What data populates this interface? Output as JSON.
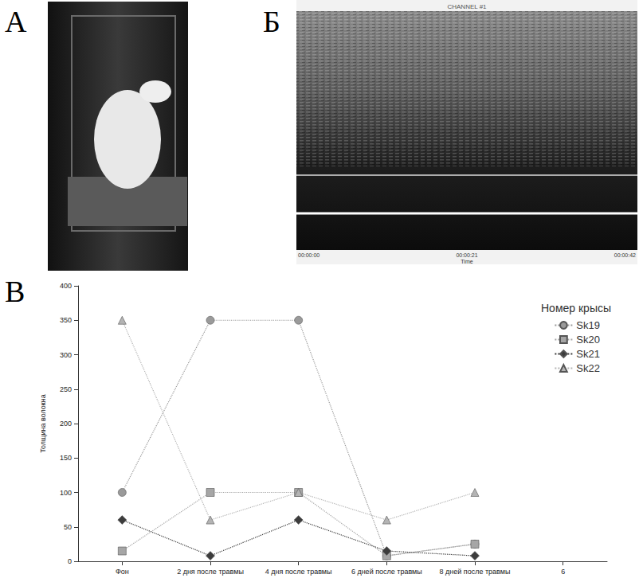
{
  "panel_labels": [
    "А",
    "Б",
    "В"
  ],
  "spectrogram": {
    "title": "CHANNEL #1",
    "x_labels": [
      "00:00:00",
      "00:00:21",
      "00:00:42"
    ],
    "x_title": "Time"
  },
  "chart_data": {
    "type": "line",
    "y_label": "Толщина волокна",
    "legend_title": "Номер крысы",
    "legend": "top-right",
    "grid": false,
    "categories": [
      "Фон",
      "2 дня после травмы",
      "4 дня после травмы",
      "6 дней после травмы",
      "8 дней после травмы",
      "6"
    ],
    "ylim": [
      0,
      400
    ],
    "yticks": [
      0,
      50,
      100,
      150,
      200,
      250,
      300,
      350,
      400
    ],
    "series": [
      {
        "name": "Sk19",
        "color": "#9a9a9a",
        "marker": "circle",
        "line_style": "dotted",
        "values": [
          100,
          350,
          350,
          8,
          25,
          null
        ]
      },
      {
        "name": "Sk20",
        "color": "#a6a6a6",
        "marker": "square",
        "line_style": "dotted",
        "values": [
          15,
          100,
          100,
          8,
          25,
          null
        ]
      },
      {
        "name": "Sk21",
        "color": "#3c3c3c",
        "marker": "diamond",
        "line_style": "dotted",
        "values": [
          60,
          8,
          60,
          15,
          8,
          null
        ]
      },
      {
        "name": "Sk22",
        "color": "#b4b4b4",
        "marker": "triangle",
        "line_style": "dotted",
        "values": [
          350,
          60,
          100,
          60,
          100,
          null
        ]
      }
    ]
  }
}
